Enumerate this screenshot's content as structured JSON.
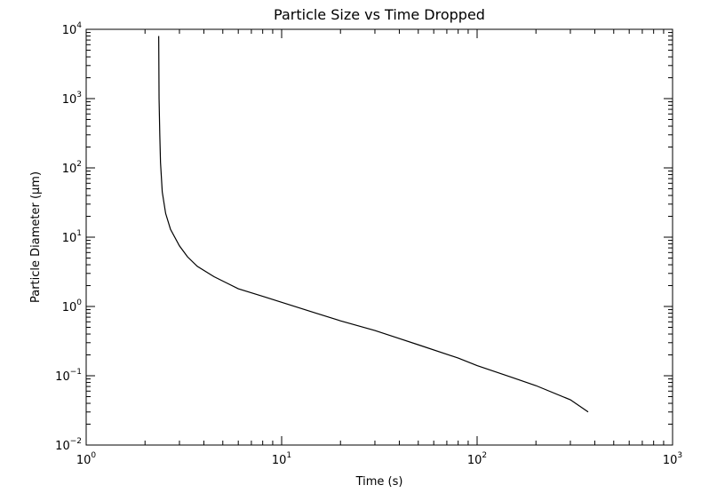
{
  "chart_data": {
    "type": "line",
    "title": "Particle Size vs Time Dropped",
    "xlabel": "Time (s)",
    "ylabel": "Particle Diameter (μm)",
    "xscale": "log",
    "yscale": "log",
    "xlim": [
      1,
      1000
    ],
    "ylim": [
      0.01,
      10000
    ],
    "grid": false,
    "legend": "none",
    "x_ticks": [
      {
        "base": "10",
        "exp": "0",
        "value": 1
      },
      {
        "base": "10",
        "exp": "1",
        "value": 10
      },
      {
        "base": "10",
        "exp": "2",
        "value": 100
      },
      {
        "base": "10",
        "exp": "3",
        "value": 1000
      }
    ],
    "y_ticks": [
      {
        "base": "10",
        "exp": "−2",
        "value": 0.01
      },
      {
        "base": "10",
        "exp": "−1",
        "value": 0.1
      },
      {
        "base": "10",
        "exp": "0",
        "value": 1
      },
      {
        "base": "10",
        "exp": "1",
        "value": 10
      },
      {
        "base": "10",
        "exp": "2",
        "value": 100
      },
      {
        "base": "10",
        "exp": "3",
        "value": 1000
      },
      {
        "base": "10",
        "exp": "4",
        "value": 10000
      }
    ],
    "series": [
      {
        "color": "#000000",
        "x": [
          2.35,
          2.36,
          2.38,
          2.4,
          2.45,
          2.55,
          2.7,
          3.0,
          3.3,
          3.7,
          4.5,
          6.0,
          8.0,
          10,
          15,
          20,
          30,
          50,
          80,
          100,
          150,
          200,
          300,
          370
        ],
        "y": [
          8000,
          1000,
          300,
          120,
          45,
          22,
          13,
          7.5,
          5.2,
          3.8,
          2.7,
          1.8,
          1.4,
          1.15,
          0.8,
          0.62,
          0.45,
          0.28,
          0.18,
          0.14,
          0.095,
          0.072,
          0.045,
          0.03
        ]
      }
    ]
  }
}
